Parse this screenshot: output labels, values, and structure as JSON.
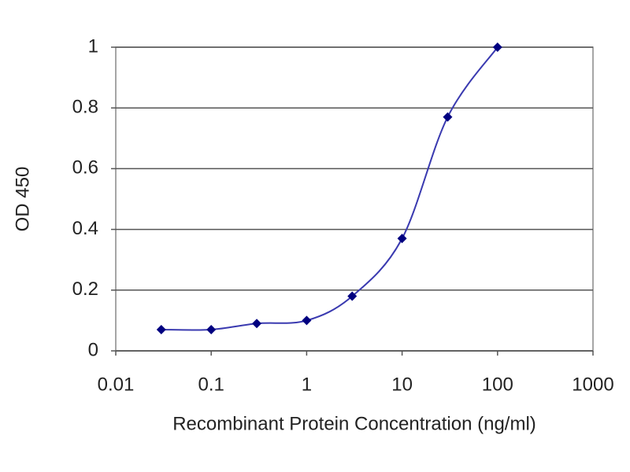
{
  "chart_data": {
    "type": "line",
    "x_label": "Recombinant Protein Concentration (ng/ml)",
    "y_label": "OD 450",
    "x": [
      0.03,
      0.1,
      0.3,
      1,
      3,
      10,
      30,
      100
    ],
    "series": [
      {
        "color": "#000080",
        "values": [
          0.07,
          0.07,
          0.09,
          0.1,
          0.18,
          0.37,
          0.77,
          1.0
        ]
      }
    ],
    "line_color": "#3a3ab0",
    "xlim": [
      0.01,
      1000
    ],
    "xticks": [
      0.01,
      0.1,
      1,
      10,
      100,
      1000
    ],
    "xscale": "log",
    "ylim": [
      0,
      1
    ],
    "yticks": [
      0,
      0.2,
      0.4,
      0.6,
      0.8,
      1
    ],
    "grid": true
  }
}
